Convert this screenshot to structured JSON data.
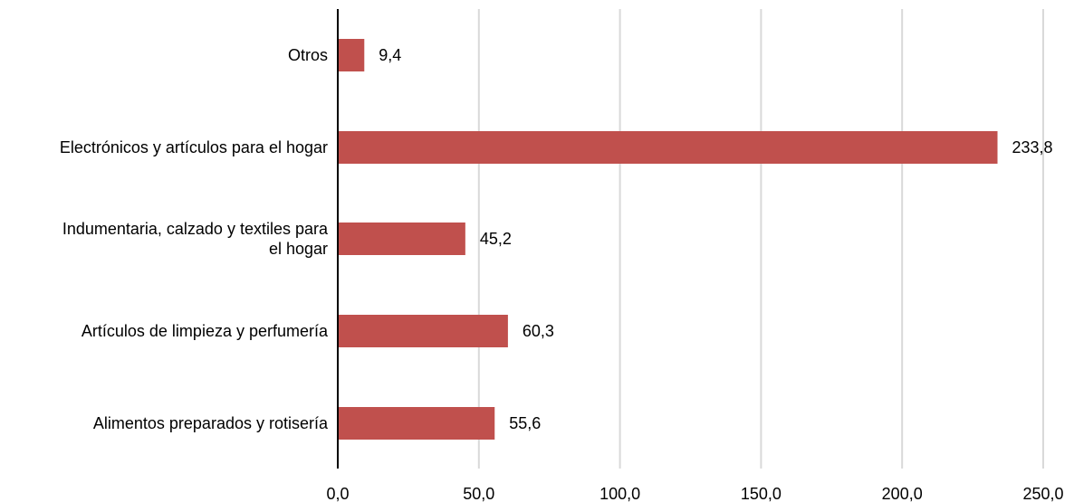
{
  "chart_data": {
    "type": "bar",
    "orientation": "horizontal",
    "categories": [
      "Otros",
      "Electrónicos y artículos para el hogar",
      "Indumentaria, calzado y textiles para el hogar",
      "Artículos de limpieza y perfumería",
      "Alimentos preparados y rotisería"
    ],
    "category_lines": [
      [
        "Otros"
      ],
      [
        "Electrónicos y artículos para el hogar"
      ],
      [
        "Indumentaria, calzado y textiles para",
        "el hogar"
      ],
      [
        "Artículos de limpieza y perfumería"
      ],
      [
        "Alimentos preparados y rotisería"
      ]
    ],
    "values": [
      9.4,
      233.8,
      45.2,
      60.3,
      55.6
    ],
    "value_labels": [
      "9,4",
      "233,8",
      "45,2",
      "60,3",
      "55,6"
    ],
    "xlim": [
      0,
      250
    ],
    "x_ticks": [
      0,
      50,
      100,
      150,
      200,
      250
    ],
    "x_tick_labels": [
      "0,0",
      "50,0",
      "100,0",
      "150,0",
      "200,0",
      "250,0"
    ],
    "grid": true,
    "bar_color": "#c0504d",
    "title": "",
    "xlabel": "",
    "ylabel": ""
  }
}
